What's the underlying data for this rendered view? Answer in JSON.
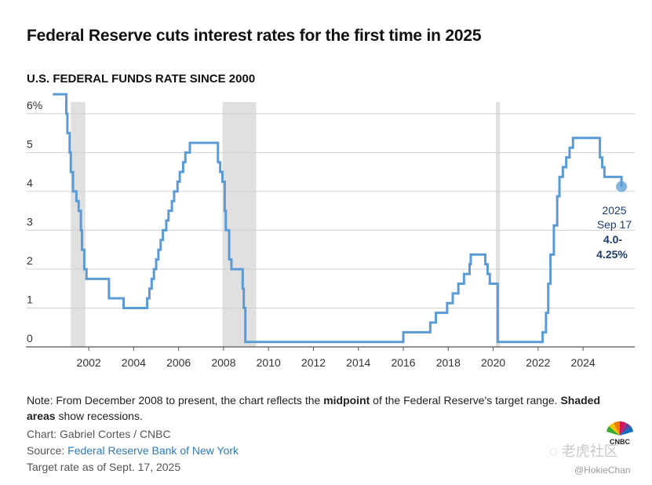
{
  "headline": "Federal Reserve cuts interest rates for the first time in 2025",
  "chart_data": {
    "type": "line",
    "title": "U.S. FEDERAL FUNDS RATE SINCE 2000",
    "xlabel": "",
    "ylabel": "",
    "xlim": [
      2000.25,
      2026.3
    ],
    "ylim": [
      0,
      6.3
    ],
    "y_ticks": [
      {
        "value": 6,
        "label": "6%"
      },
      {
        "value": 5,
        "label": "5"
      },
      {
        "value": 4,
        "label": "4"
      },
      {
        "value": 3,
        "label": "3"
      },
      {
        "value": 2,
        "label": "2"
      },
      {
        "value": 1,
        "label": "1"
      },
      {
        "value": 0,
        "label": "0"
      }
    ],
    "x_ticks": [
      {
        "value": 2002,
        "label": "2002"
      },
      {
        "value": 2004,
        "label": "2004"
      },
      {
        "value": 2006,
        "label": "2006"
      },
      {
        "value": 2008,
        "label": "2008"
      },
      {
        "value": 2010,
        "label": "2010"
      },
      {
        "value": 2012,
        "label": "2012"
      },
      {
        "value": 2014,
        "label": "2014"
      },
      {
        "value": 2016,
        "label": "2016"
      },
      {
        "value": 2018,
        "label": "2018"
      },
      {
        "value": 2020,
        "label": "2020"
      },
      {
        "value": 2022,
        "label": "2022"
      },
      {
        "value": 2024,
        "label": "2024"
      }
    ],
    "grid": true,
    "line_color": "#5b9bd5",
    "recession_color": "#e0e0e0",
    "recessions": [
      [
        2001.2,
        2001.85
      ],
      [
        2007.95,
        2009.45
      ],
      [
        2020.12,
        2020.3
      ]
    ],
    "series": [
      {
        "values": [
          [
            2000.4,
            6.5
          ],
          [
            2000.95,
            6.5
          ],
          [
            2001.0,
            6.0
          ],
          [
            2001.05,
            5.5
          ],
          [
            2001.15,
            5.0
          ],
          [
            2001.2,
            4.5
          ],
          [
            2001.3,
            4.0
          ],
          [
            2001.45,
            3.75
          ],
          [
            2001.55,
            3.5
          ],
          [
            2001.65,
            3.0
          ],
          [
            2001.7,
            2.5
          ],
          [
            2001.8,
            2.0
          ],
          [
            2001.9,
            1.75
          ],
          [
            2002.85,
            1.75
          ],
          [
            2002.9,
            1.25
          ],
          [
            2003.5,
            1.25
          ],
          [
            2003.55,
            1.0
          ],
          [
            2004.5,
            1.0
          ],
          [
            2004.6,
            1.25
          ],
          [
            2004.7,
            1.5
          ],
          [
            2004.8,
            1.75
          ],
          [
            2004.9,
            2.0
          ],
          [
            2005.0,
            2.25
          ],
          [
            2005.1,
            2.5
          ],
          [
            2005.2,
            2.75
          ],
          [
            2005.3,
            3.0
          ],
          [
            2005.45,
            3.25
          ],
          [
            2005.55,
            3.5
          ],
          [
            2005.7,
            3.75
          ],
          [
            2005.8,
            4.0
          ],
          [
            2005.95,
            4.25
          ],
          [
            2006.05,
            4.5
          ],
          [
            2006.2,
            4.75
          ],
          [
            2006.3,
            5.0
          ],
          [
            2006.5,
            5.25
          ],
          [
            2007.7,
            5.25
          ],
          [
            2007.75,
            4.75
          ],
          [
            2007.85,
            4.5
          ],
          [
            2007.95,
            4.25
          ],
          [
            2008.05,
            3.5
          ],
          [
            2008.1,
            3.0
          ],
          [
            2008.25,
            2.25
          ],
          [
            2008.35,
            2.0
          ],
          [
            2008.8,
            2.0
          ],
          [
            2008.85,
            1.5
          ],
          [
            2008.9,
            1.0
          ],
          [
            2008.97,
            0.125
          ],
          [
            2015.95,
            0.125
          ],
          [
            2016.0,
            0.375
          ],
          [
            2016.95,
            0.375
          ],
          [
            2017.2,
            0.625
          ],
          [
            2017.45,
            0.875
          ],
          [
            2017.95,
            1.125
          ],
          [
            2018.2,
            1.375
          ],
          [
            2018.45,
            1.625
          ],
          [
            2018.7,
            1.875
          ],
          [
            2018.95,
            2.125
          ],
          [
            2019.0,
            2.375
          ],
          [
            2019.55,
            2.375
          ],
          [
            2019.65,
            2.125
          ],
          [
            2019.75,
            1.875
          ],
          [
            2019.85,
            1.625
          ],
          [
            2020.15,
            1.625
          ],
          [
            2020.2,
            0.125
          ],
          [
            2022.15,
            0.125
          ],
          [
            2022.2,
            0.375
          ],
          [
            2022.35,
            0.875
          ],
          [
            2022.45,
            1.625
          ],
          [
            2022.55,
            2.375
          ],
          [
            2022.7,
            3.125
          ],
          [
            2022.85,
            3.875
          ],
          [
            2022.95,
            4.375
          ],
          [
            2023.1,
            4.625
          ],
          [
            2023.25,
            4.875
          ],
          [
            2023.4,
            5.125
          ],
          [
            2023.55,
            5.375
          ],
          [
            2024.7,
            5.375
          ],
          [
            2024.75,
            4.875
          ],
          [
            2024.85,
            4.625
          ],
          [
            2024.95,
            4.375
          ],
          [
            2025.7,
            4.375
          ],
          [
            2025.71,
            4.125
          ]
        ]
      }
    ],
    "highlight_point": {
      "x": 2025.71,
      "y": 4.125
    }
  },
  "annotation": {
    "year": "2025",
    "date": "Sep 17",
    "range_line1": "4.0-",
    "range_line2": "4.25%"
  },
  "note": {
    "prefix": "Note: From December 2008 to present, the chart reflects the ",
    "bold1": "midpoint",
    "middle": " of the Federal Reserve's target range. ",
    "bold2": "Shaded areas",
    "suffix": " show recessions."
  },
  "credit": "Chart: Gabriel Cortes / CNBC",
  "source": {
    "prefix": "Source: ",
    "link": "Federal Reserve Bank of New York"
  },
  "asof": "Target rate as of Sept. 17, 2025",
  "logo_text": "CNBC",
  "watermark_cn": "老虎社区",
  "watermark_handle": "@HokieChan",
  "colors": {
    "line": "#5b9bd5",
    "annotation": "#1d3c6e",
    "link": "#2e7ab8"
  }
}
